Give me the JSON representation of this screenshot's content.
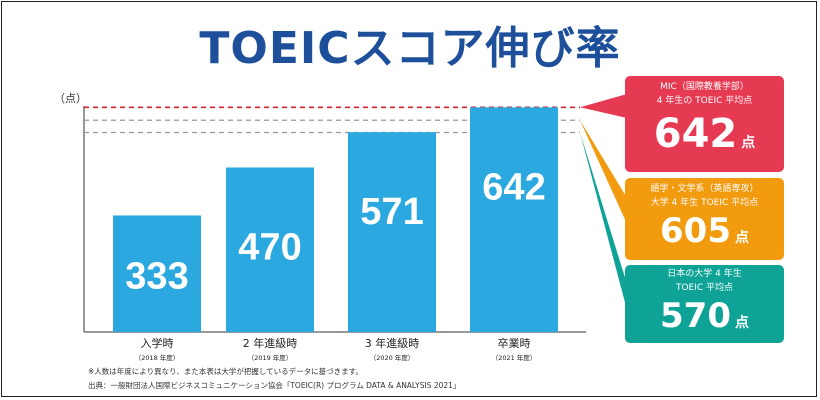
{
  "title": "TOEICスコア伸び率",
  "chart_data": {
    "type": "bar",
    "ylabel": "（点）",
    "ylim": [
      0,
      700
    ],
    "categories": [
      "入学時",
      "2 年進級時",
      "3 年進級時",
      "卒業時"
    ],
    "category_years": [
      "（2018 年度）",
      "（2019 年度）",
      "（2020 年度）",
      "（2021 年度）"
    ],
    "values": [
      333,
      470,
      571,
      642
    ],
    "bar_color": "#2ba8e0",
    "reference_lines": [
      {
        "name": "MIC（国際教養学部）",
        "value": 642,
        "color": "#d9232e"
      },
      {
        "name": "語学・文学系（英語専攻）",
        "value": 605,
        "color": "#999999"
      },
      {
        "name": "日本の大学 4 年生",
        "value": 570,
        "color": "#999999"
      }
    ]
  },
  "callouts": [
    {
      "line1": "MIC（国際教養学部）",
      "line2": "4 年生の TOEIC 平均点",
      "value": "642",
      "unit": "点",
      "color": "#e63a52"
    },
    {
      "line1": "語学・文学系（英語専攻）",
      "line2": "大学 4 年生 TOEIC 平均点",
      "value": "605",
      "unit": "点",
      "color": "#f29b0f"
    },
    {
      "line1": "日本の大学 4 年生",
      "line2": "TOEIC 平均点",
      "value": "570",
      "unit": "点",
      "color": "#0ea396"
    }
  ],
  "notes": {
    "note1": "※人数は年度により異なり、また本表は大学が把握しているデータに基づきます。",
    "source": "出典：一般財団法人国際ビジネスコミュニケーション協会「TOEIC(R) プログラム DATA & ANALYSIS 2021」"
  }
}
